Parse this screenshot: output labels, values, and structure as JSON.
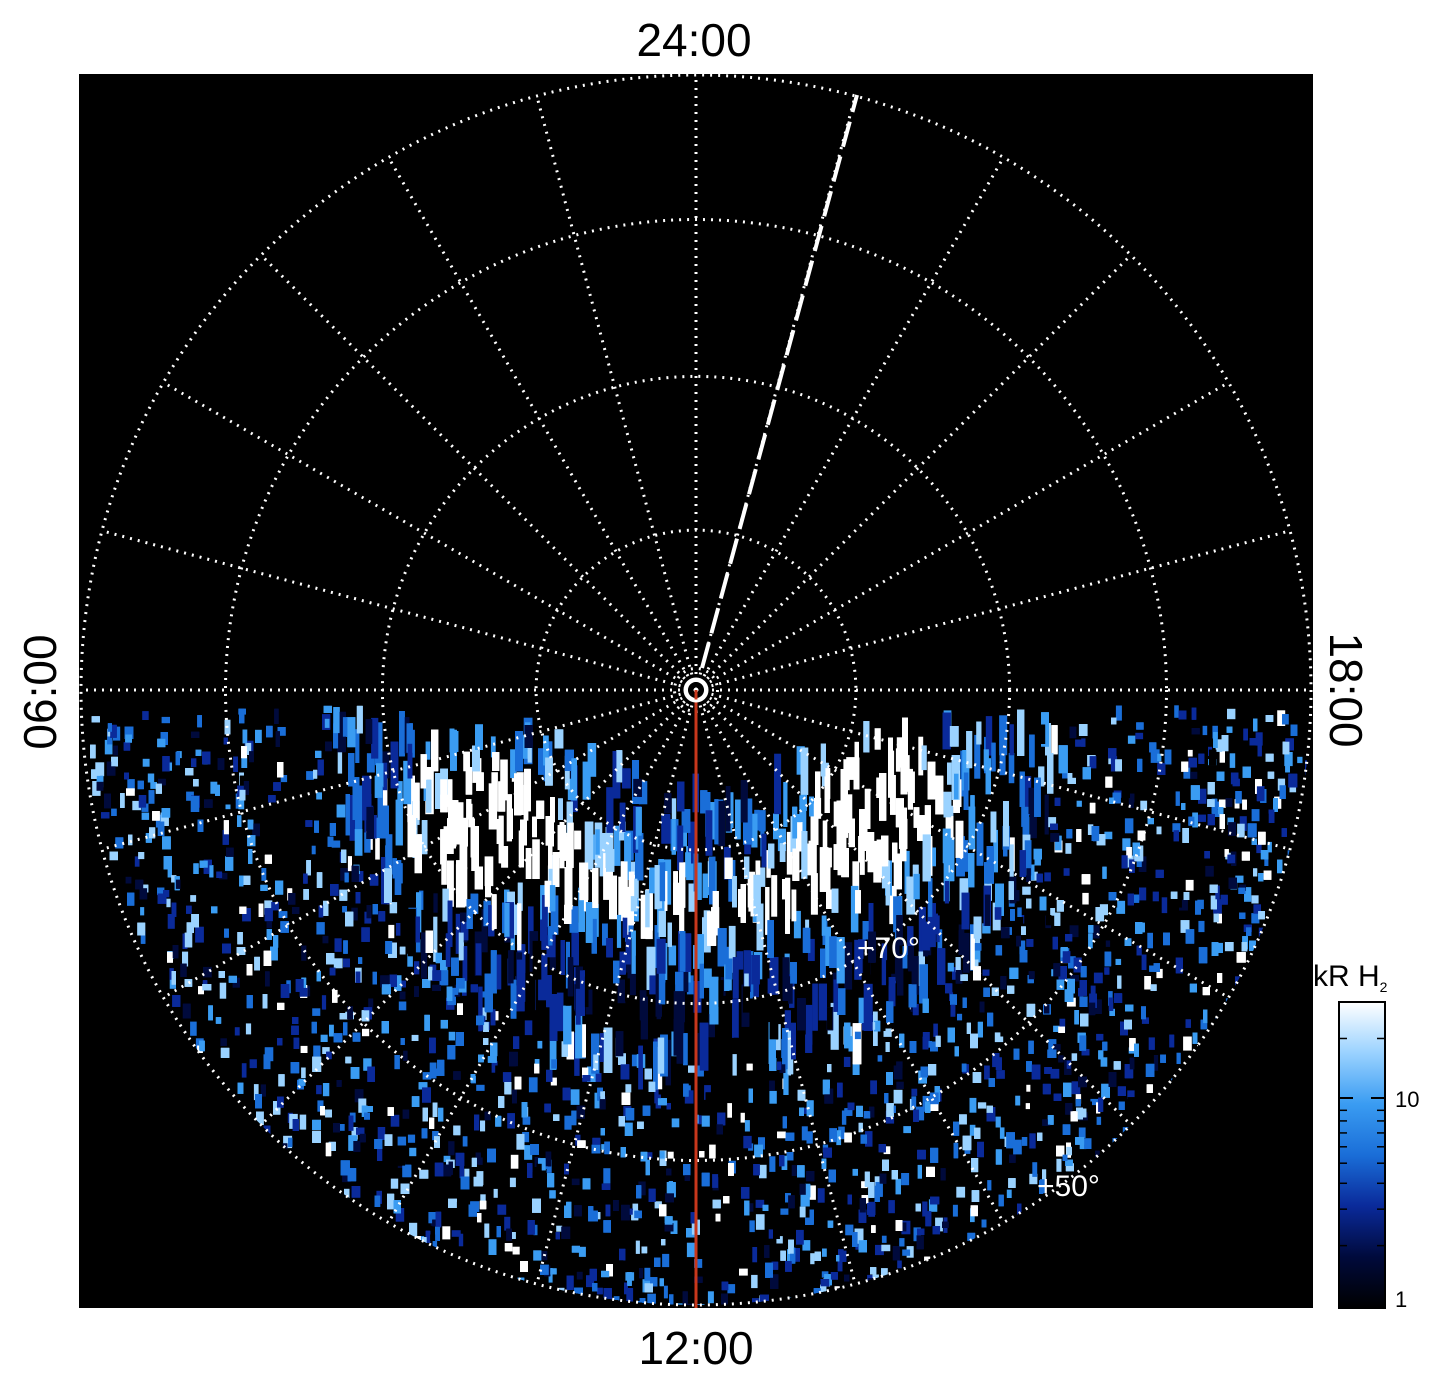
{
  "chart_data": {
    "type": "heatmap",
    "projection": "polar (north-pole centred)",
    "time_labels": {
      "top": "24:00",
      "bottom": "12:00",
      "left": "06:00",
      "right": "18:00"
    },
    "latitude_labels": [
      "+70°",
      "+50°"
    ],
    "colorbar": {
      "title": "kR H",
      "subscript": "2",
      "scale": "log",
      "range": [
        1,
        30
      ],
      "tick_labels": [
        "1",
        "10"
      ],
      "colors": [
        "#000000",
        "#000a3c",
        "#0a2a9a",
        "#1a6ed8",
        "#3a9cf2",
        "#9ad2ff",
        "#ffffff"
      ]
    },
    "overlays": {
      "noon_meridian_color": "#c8371c",
      "grid_color": "#ffffff",
      "background": "#000000"
    }
  }
}
